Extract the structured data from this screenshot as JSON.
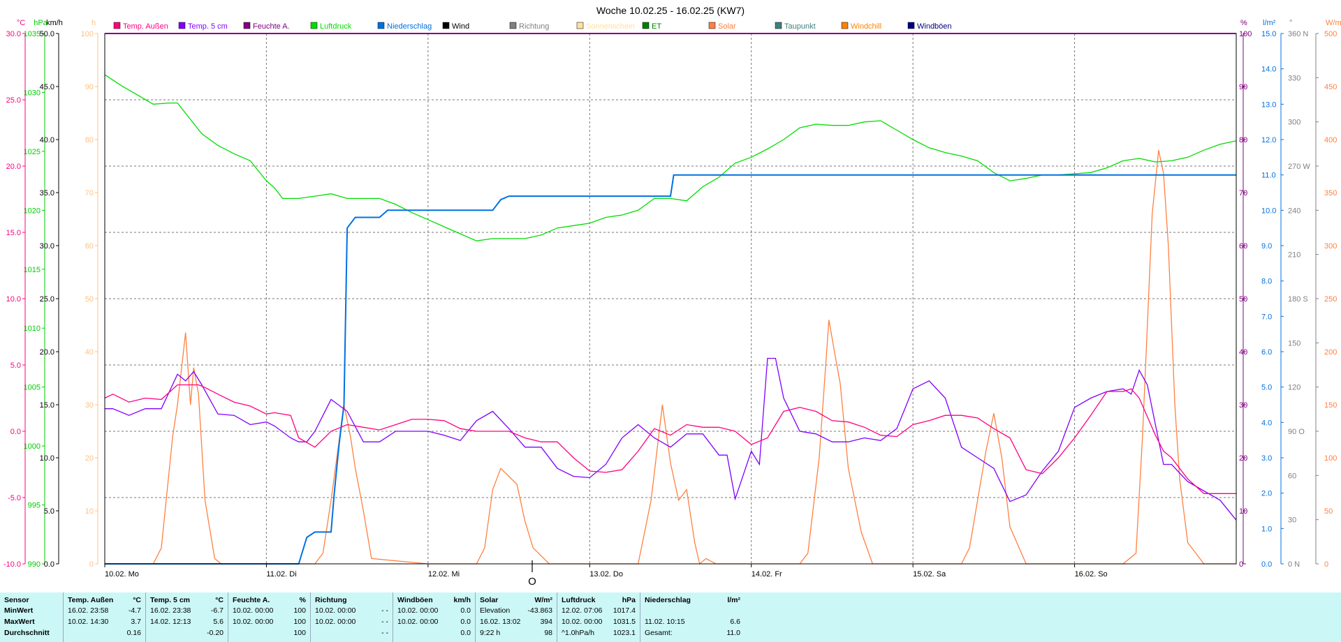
{
  "title": "Woche 10.02.25 - 16.02.25 (KW7)",
  "legend": [
    {
      "label": "Temp. Außen",
      "color": "#ff0080"
    },
    {
      "label": "Temp. 5 cm",
      "color": "#8000ff"
    },
    {
      "label": "Feuchte A.",
      "color": "#800080"
    },
    {
      "label": "Luftdruck",
      "color": "#00dd00"
    },
    {
      "label": "Niederschlag",
      "color": "#0070e0"
    },
    {
      "label": "Wind",
      "color": "#000000"
    },
    {
      "label": "Richtung",
      "color": "#808080"
    },
    {
      "label": "Sonnenschein",
      "color": "#ffe0a0"
    },
    {
      "label": "ET",
      "color": "#008000"
    },
    {
      "label": "Solar",
      "color": "#ff8040"
    },
    {
      "label": "Taupunkt",
      "color": "#408080"
    },
    {
      "label": "Windchill",
      "color": "#ff8000"
    },
    {
      "label": "Windböen",
      "color": "#000080"
    }
  ],
  "axes_left": [
    {
      "unit": "°C",
      "color": "#ff0080",
      "ticks": [
        "30.0",
        "25.0",
        "20.0",
        "15.0",
        "10.0",
        "5.0",
        "0.0",
        "-5.0",
        "-10.0"
      ]
    },
    {
      "unit": "hPa",
      "color": "#00cc00",
      "ticks": [
        "1035",
        "1030",
        "1025",
        "1020",
        "1015",
        "1010",
        "1005",
        "1000",
        "995",
        "990"
      ]
    },
    {
      "unit": "km/h",
      "color": "#000000",
      "ticks": [
        "50.0",
        "45.0",
        "40.0",
        "35.0",
        "30.0",
        "25.0",
        "20.0",
        "15.0",
        "10.0",
        "5.0",
        "0.0"
      ]
    },
    {
      "unit": "h",
      "color": "#ffc080",
      "ticks": [
        "100",
        "90",
        "80",
        "70",
        "60",
        "50",
        "40",
        "30",
        "20",
        "10",
        "0"
      ]
    }
  ],
  "axes_right": [
    {
      "unit": "%",
      "color": "#800080",
      "ticks": [
        "100",
        "90",
        "80",
        "70",
        "60",
        "50",
        "40",
        "30",
        "20",
        "10",
        "0"
      ]
    },
    {
      "unit": "l/m²",
      "color": "#0070e0",
      "ticks": [
        "15.0",
        "14.0",
        "13.0",
        "12.0",
        "11.0",
        "10.0",
        "9.0",
        "8.0",
        "7.0",
        "6.0",
        "5.0",
        "4.0",
        "3.0",
        "2.0",
        "1.0",
        "0.0"
      ]
    },
    {
      "unit": "°",
      "color": "#808080",
      "ticks": [
        "360 N",
        "330",
        "300",
        "270 W",
        "240",
        "210",
        "180 S",
        "150",
        "120",
        "90 O",
        "60",
        "30",
        "0 N"
      ]
    },
    {
      "unit": "W/m²",
      "color": "#ff8040",
      "ticks": [
        "500",
        "450",
        "400",
        "350",
        "300",
        "250",
        "200",
        "150",
        "100",
        "50",
        "0"
      ]
    }
  ],
  "x_days": [
    "10.02.  Mo",
    "11.02.  Di",
    "12.02.  Mi",
    "13.02.  Do",
    "14.02.  Fr",
    "15.02.  Sa",
    "16.02.  So"
  ],
  "center_marker": "O",
  "chart_data": {
    "type": "line",
    "title": "Woche 10.02.25 - 16.02.25 (KW7)",
    "x_unit": "days since 10.02.25 00:00",
    "xlim": [
      0,
      7
    ],
    "series": [
      {
        "name": "Temp. Außen",
        "unit": "°C",
        "ylim": [
          -10,
          30
        ],
        "color": "#ff0080",
        "x": [
          0,
          0.05,
          0.15,
          0.25,
          0.35,
          0.45,
          0.5,
          0.58,
          0.62,
          0.7,
          0.8,
          0.9,
          1.0,
          1.05,
          1.15,
          1.2,
          1.3,
          1.4,
          1.5,
          1.6,
          1.7,
          1.8,
          1.9,
          2.0,
          2.1,
          2.2,
          2.3,
          2.4,
          2.5,
          2.6,
          2.7,
          2.8,
          2.9,
          3.0,
          3.1,
          3.2,
          3.3,
          3.4,
          3.5,
          3.6,
          3.7,
          3.8,
          3.9,
          4.0,
          4.1,
          4.2,
          4.3,
          4.4,
          4.5,
          4.6,
          4.7,
          4.8,
          4.9,
          5.0,
          5.1,
          5.2,
          5.3,
          5.4,
          5.5,
          5.6,
          5.7,
          5.8,
          5.9,
          6.0,
          6.1,
          6.2,
          6.3,
          6.35,
          6.4,
          6.5,
          6.55,
          6.6,
          6.7,
          6.8,
          6.9,
          7.0
        ],
        "values": [
          2.5,
          2.8,
          2.2,
          2.5,
          2.4,
          3.5,
          3.5,
          3.5,
          3.3,
          2.8,
          2.2,
          1.9,
          1.3,
          1.4,
          1.2,
          -0.5,
          -1.2,
          0,
          0.5,
          0.3,
          0.1,
          0.5,
          0.9,
          0.9,
          0.8,
          0.2,
          0.0,
          0.0,
          0.0,
          -0.5,
          -0.8,
          -0.8,
          -2.0,
          -3.0,
          -3.1,
          -2.9,
          -1.5,
          0.2,
          -0.3,
          0.5,
          0.3,
          0.3,
          0.0,
          -1.0,
          -0.5,
          1.5,
          1.8,
          1.5,
          0.8,
          0.7,
          0.3,
          -0.3,
          -0.4,
          0.5,
          0.8,
          1.2,
          1.2,
          1.0,
          0.2,
          -0.5,
          -2.9,
          -3.2,
          -2.0,
          -0.5,
          1.2,
          3.0,
          3.0,
          3.2,
          2.5,
          -0.3,
          -1.5,
          -2.0,
          -3.6,
          -4.7,
          -4.7,
          -4.7
        ]
      },
      {
        "name": "Temp. 5 cm",
        "unit": "°C",
        "ylim": [
          -10,
          30
        ],
        "color": "#8000ff",
        "x": [
          0,
          0.05,
          0.15,
          0.25,
          0.35,
          0.4,
          0.45,
          0.5,
          0.55,
          0.6,
          0.7,
          0.8,
          0.9,
          1.0,
          1.05,
          1.15,
          1.2,
          1.25,
          1.3,
          1.4,
          1.5,
          1.6,
          1.7,
          1.8,
          1.9,
          2.0,
          2.1,
          2.2,
          2.3,
          2.4,
          2.5,
          2.6,
          2.7,
          2.8,
          2.9,
          3.0,
          3.1,
          3.2,
          3.3,
          3.4,
          3.5,
          3.6,
          3.7,
          3.8,
          3.85,
          3.9,
          4.0,
          4.05,
          4.1,
          4.15,
          4.2,
          4.3,
          4.4,
          4.5,
          4.6,
          4.7,
          4.8,
          4.9,
          5.0,
          5.1,
          5.2,
          5.3,
          5.4,
          5.5,
          5.6,
          5.7,
          5.8,
          5.9,
          6.0,
          6.1,
          6.2,
          6.3,
          6.35,
          6.4,
          6.45,
          6.5,
          6.55,
          6.6,
          6.7,
          6.8,
          6.9,
          7.0
        ],
        "values": [
          1.7,
          1.7,
          1.2,
          1.7,
          1.7,
          3.0,
          4.3,
          3.8,
          4.5,
          3.5,
          1.3,
          1.2,
          0.5,
          0.7,
          0.4,
          -0.5,
          -0.8,
          -0.8,
          0,
          2.4,
          1.5,
          -0.8,
          -0.8,
          0.0,
          0.0,
          0.0,
          -0.3,
          -0.7,
          0.8,
          1.5,
          0.2,
          -1.2,
          -1.2,
          -2.8,
          -3.4,
          -3.5,
          -2.5,
          -0.5,
          0.5,
          -0.5,
          -1.2,
          -0.2,
          -0.2,
          -1.8,
          -1.8,
          -5.1,
          -1.5,
          -2.5,
          5.5,
          5.5,
          2.5,
          0,
          -0.2,
          -0.8,
          -0.8,
          -0.5,
          -0.7,
          0.2,
          3.2,
          3.8,
          2.5,
          -1.2,
          -2.0,
          -2.8,
          -5.3,
          -4.8,
          -3.0,
          -1.5,
          1.8,
          2.5,
          3.0,
          3.2,
          2.8,
          4.6,
          3.5,
          0.5,
          -2.5,
          -2.5,
          -3.8,
          -4.5,
          -5.2,
          -6.7
        ]
      },
      {
        "name": "Luftdruck",
        "unit": "hPa",
        "ylim": [
          990,
          1035
        ],
        "color": "#00dd00",
        "x": [
          0,
          0.1,
          0.2,
          0.3,
          0.4,
          0.45,
          0.6,
          0.7,
          0.8,
          0.9,
          1.0,
          1.05,
          1.1,
          1.15,
          1.2,
          1.3,
          1.4,
          1.5,
          1.6,
          1.7,
          1.8,
          1.9,
          2.0,
          2.1,
          2.2,
          2.3,
          2.4,
          2.5,
          2.6,
          2.7,
          2.8,
          2.9,
          3.0,
          3.1,
          3.2,
          3.3,
          3.4,
          3.5,
          3.6,
          3.7,
          3.8,
          3.9,
          4.0,
          4.1,
          4.2,
          4.3,
          4.4,
          4.5,
          4.6,
          4.7,
          4.8,
          4.9,
          5.0,
          5.1,
          5.2,
          5.3,
          5.4,
          5.5,
          5.6,
          5.7,
          5.8,
          5.9,
          6.0,
          6.1,
          6.2,
          6.3,
          6.4,
          6.5,
          6.6,
          6.7,
          6.8,
          6.9,
          7.0
        ],
        "values": [
          1031.5,
          1030.6,
          1029.8,
          1029,
          1029.1,
          1029.1,
          1026.5,
          1025.5,
          1024.8,
          1024.2,
          1022.5,
          1021.9,
          1021.0,
          1021.0,
          1021.0,
          1021.2,
          1021.4,
          1021.0,
          1021.0,
          1021.0,
          1020.5,
          1019.8,
          1019.2,
          1018.6,
          1018.0,
          1017.4,
          1017.6,
          1017.6,
          1017.6,
          1017.9,
          1018.5,
          1018.7,
          1018.9,
          1019.4,
          1019.6,
          1020.0,
          1021.0,
          1021.0,
          1020.8,
          1022.0,
          1022.8,
          1024.0,
          1024.5,
          1025.2,
          1026.0,
          1027.0,
          1027.3,
          1027.2,
          1027.2,
          1027.5,
          1027.6,
          1026.8,
          1026.0,
          1025.3,
          1024.9,
          1024.6,
          1024.2,
          1023.2,
          1022.5,
          1022.7,
          1023.0,
          1023.0,
          1023.1,
          1023.2,
          1023.6,
          1024.2,
          1024.4,
          1024.1,
          1024.2,
          1024.5,
          1025.1,
          1025.6,
          1025.9
        ]
      },
      {
        "name": "Niederschlag",
        "unit": "l/m²",
        "ylim": [
          0,
          15
        ],
        "color": "#0070e0",
        "x": [
          0,
          1.2,
          1.25,
          1.3,
          1.35,
          1.4,
          1.42,
          1.45,
          1.48,
          1.5,
          1.55,
          1.6,
          1.65,
          1.7,
          1.75,
          2.0,
          2.2,
          2.3,
          2.35,
          2.4,
          2.45,
          2.5,
          2.6,
          2.7,
          2.8,
          3.0,
          3.3,
          3.4,
          3.5,
          3.52,
          3.6,
          3.8,
          4.0,
          4.5,
          5.0,
          5.5,
          6.0,
          6.5,
          7.0
        ],
        "values": [
          0,
          0,
          0.75,
          0.9,
          0.9,
          0.9,
          2,
          3.4,
          4.5,
          9.5,
          9.8,
          9.8,
          9.8,
          9.8,
          10.0,
          10.0,
          10.0,
          10.0,
          10.0,
          10.0,
          10.3,
          10.4,
          10.4,
          10.4,
          10.4,
          10.4,
          10.4,
          10.4,
          10.4,
          11.0,
          11.0,
          11.0,
          11.0,
          11.0,
          11.0,
          11.0,
          11.0,
          11.0,
          11.0
        ]
      },
      {
        "name": "Solar",
        "unit": "W/m²",
        "ylim": [
          0,
          500
        ],
        "color": "#ff8040",
        "x": [
          0,
          0.3,
          0.35,
          0.42,
          0.45,
          0.5,
          0.53,
          0.55,
          0.58,
          0.62,
          0.68,
          0.72,
          1.0,
          1.3,
          1.35,
          1.4,
          1.48,
          1.52,
          1.55,
          1.6,
          1.65,
          2.0,
          2.3,
          2.35,
          2.4,
          2.45,
          2.55,
          2.6,
          2.65,
          2.75,
          3.0,
          3.3,
          3.38,
          3.45,
          3.5,
          3.55,
          3.6,
          3.65,
          3.68,
          3.72,
          3.78,
          3.82,
          4.0,
          4.3,
          4.35,
          4.42,
          4.48,
          4.52,
          4.55,
          4.6,
          4.68,
          4.75,
          5.0,
          5.3,
          5.35,
          5.45,
          5.5,
          5.55,
          5.6,
          5.7,
          6.0,
          6.3,
          6.38,
          6.42,
          6.48,
          6.52,
          6.55,
          6.58,
          6.62,
          6.65,
          6.7,
          6.8,
          7.0
        ],
        "values": [
          0,
          0,
          15,
          120,
          150,
          218,
          150,
          185,
          160,
          60,
          5,
          0,
          0,
          0,
          10,
          60,
          150,
          120,
          90,
          50,
          5,
          0,
          0,
          15,
          70,
          90,
          75,
          40,
          15,
          0,
          0,
          0,
          60,
          150,
          95,
          60,
          70,
          20,
          0,
          5,
          0,
          0,
          0,
          0,
          10,
          100,
          230,
          195,
          170,
          90,
          30,
          0,
          0,
          0,
          15,
          105,
          142,
          100,
          35,
          0,
          0,
          0,
          10,
          120,
          330,
          390,
          368,
          300,
          150,
          80,
          20,
          0,
          0
        ]
      }
    ],
    "x_tick_labels": [
      "10.02.  Mo",
      "11.02.  Di",
      "12.02.  Mi",
      "13.02.  Do",
      "14.02.  Fr",
      "15.02.  Sa",
      "16.02.  So"
    ]
  },
  "stats": {
    "columns": [
      {
        "header": "Sensor",
        "rows": [
          "MinWert",
          "MaxWert",
          "Durchschnitt"
        ]
      },
      {
        "header": "Temp. Außen",
        "unit": "°C",
        "rows": [
          [
            "16.02.  23:58",
            "-4.7"
          ],
          [
            "10.02.  14:30",
            "3.7"
          ],
          [
            "",
            "0.16"
          ]
        ]
      },
      {
        "header": "Temp. 5 cm",
        "unit": "°C",
        "rows": [
          [
            "16.02.  23:38",
            "-6.7"
          ],
          [
            "14.02.  12:13",
            "5.6"
          ],
          [
            "",
            "-0.20"
          ]
        ]
      },
      {
        "header": "Feuchte A.",
        "unit": "%",
        "rows": [
          [
            "10.02.  00:00",
            "100"
          ],
          [
            "10.02.  00:00",
            "100"
          ],
          [
            "",
            "100"
          ]
        ]
      },
      {
        "header": "Richtung",
        "unit": "",
        "rows": [
          [
            "10.02.  00:00",
            "- -"
          ],
          [
            "10.02.  00:00",
            "- -"
          ],
          [
            "",
            "- -"
          ]
        ]
      },
      {
        "header": "Windböen",
        "unit": "km/h",
        "rows": [
          [
            "10.02.  00:00",
            "0.0"
          ],
          [
            "10.02.  00:00",
            "0.0"
          ],
          [
            "",
            "0.0"
          ]
        ]
      },
      {
        "header": "Solar",
        "unit": "W/m²",
        "rows": [
          [
            "Elevation",
            "-43.863"
          ],
          [
            "16.02.  13:02",
            "394"
          ],
          [
            "9:22 h",
            "98"
          ]
        ]
      },
      {
        "header": "Luftdruck",
        "unit": "hPa",
        "rows": [
          [
            "12.02.  07:06",
            "1017.4"
          ],
          [
            "10.02.  00:00",
            "1031.5"
          ],
          [
            "^1.0hPa/h",
            "1023.1"
          ]
        ]
      },
      {
        "header": "Niederschlag",
        "unit": "l/m²",
        "rows": [
          [
            "",
            ""
          ],
          [
            "11.02.  10:15",
            "6.6"
          ],
          [
            "Gesamt:",
            "11.0"
          ]
        ]
      }
    ]
  }
}
